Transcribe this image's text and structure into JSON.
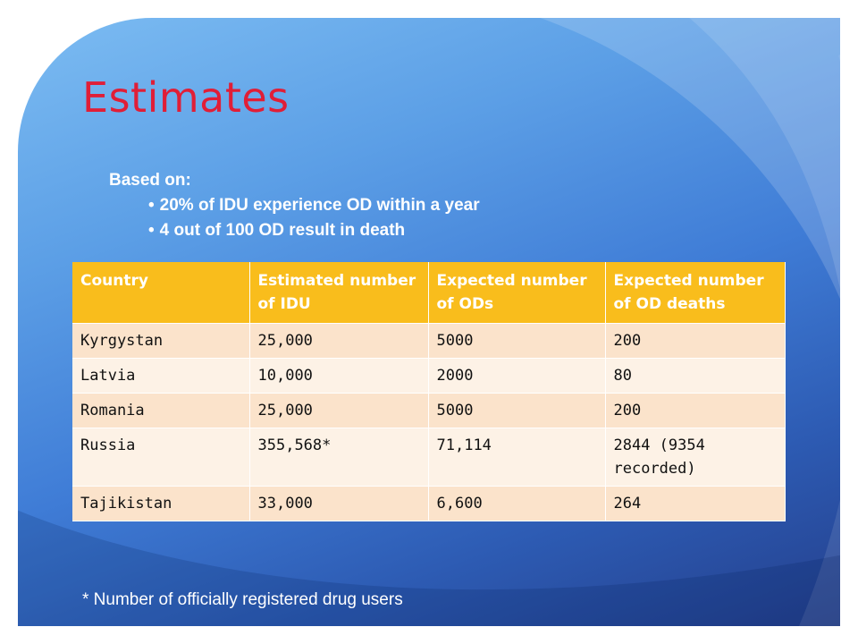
{
  "slide": {
    "title": "Estimates",
    "basis": {
      "heading": "Based on:",
      "bullets": [
        "20% of IDU experience OD within a year",
        "4 out of 100 OD result in death"
      ]
    },
    "table": {
      "headers": [
        "Country",
        "Estimated number of IDU",
        "Expected number of ODs",
        "Expected number of OD deaths"
      ],
      "rows": [
        [
          "Kyrgystan",
          "25,000",
          "5000",
          "200"
        ],
        [
          "Latvia",
          "10,000",
          "2000",
          "80"
        ],
        [
          "Romania",
          "25,000",
          "5000",
          "200"
        ],
        [
          "Russia",
          "355,568*",
          "71,114",
          "2844  (9354 recorded)"
        ],
        [
          "Tajikistan",
          "33,000",
          "6,600",
          "264"
        ]
      ]
    },
    "footnote": "* Number of officially registered drug users",
    "colors": {
      "title": "#e01e37",
      "header_fill": "#f9bd1c",
      "row_fill_odd": "#fbe3cb",
      "row_fill_even": "#fdf2e6",
      "background_top": "#7cbcf2",
      "background_bottom": "#243f8c"
    }
  }
}
